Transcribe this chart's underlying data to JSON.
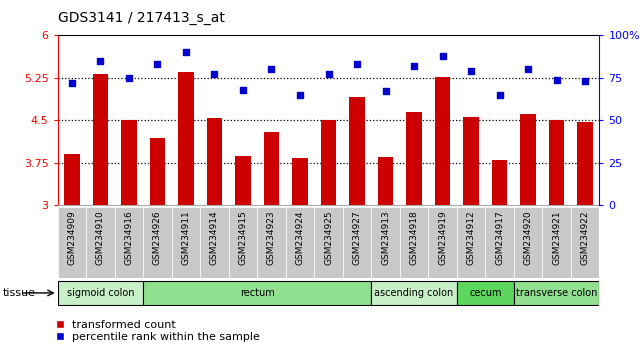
{
  "title": "GDS3141 / 217413_s_at",
  "samples": [
    "GSM234909",
    "GSM234910",
    "GSM234916",
    "GSM234926",
    "GSM234911",
    "GSM234914",
    "GSM234915",
    "GSM234923",
    "GSM234924",
    "GSM234925",
    "GSM234927",
    "GSM234913",
    "GSM234918",
    "GSM234919",
    "GSM234912",
    "GSM234917",
    "GSM234920",
    "GSM234921",
    "GSM234922"
  ],
  "bar_values": [
    3.9,
    5.32,
    4.5,
    4.19,
    5.35,
    4.55,
    3.87,
    4.3,
    3.83,
    4.5,
    4.92,
    3.85,
    4.65,
    5.27,
    4.56,
    3.8,
    4.62,
    4.5,
    4.47
  ],
  "dot_values": [
    72,
    85,
    75,
    83,
    90,
    77,
    68,
    80,
    65,
    77,
    83,
    67,
    82,
    88,
    79,
    65,
    80,
    74,
    73
  ],
  "bar_color": "#cc0000",
  "dot_color": "#0000cc",
  "ylim_left": [
    3,
    6
  ],
  "ylim_right": [
    0,
    100
  ],
  "yticks_left": [
    3,
    3.75,
    4.5,
    5.25,
    6
  ],
  "ytick_labels_left": [
    "3",
    "3.75",
    "4.5",
    "5.25",
    "6"
  ],
  "yticks_right": [
    0,
    25,
    50,
    75,
    100
  ],
  "ytick_labels_right": [
    "0",
    "25",
    "50",
    "75",
    "100%"
  ],
  "hlines": [
    3.75,
    4.5,
    5.25
  ],
  "tissue_groups": [
    {
      "label": "sigmoid colon",
      "start": 0,
      "end": 3,
      "color": "#c8f0c8"
    },
    {
      "label": "rectum",
      "start": 3,
      "end": 11,
      "color": "#90e090"
    },
    {
      "label": "ascending colon",
      "start": 11,
      "end": 14,
      "color": "#c8f0c8"
    },
    {
      "label": "cecum",
      "start": 14,
      "end": 16,
      "color": "#5cd65c"
    },
    {
      "label": "transverse colon",
      "start": 16,
      "end": 19,
      "color": "#90e090"
    }
  ],
  "sample_bg_color": "#c8c8c8",
  "tissue_label": "tissue",
  "legend_bar_label": "transformed count",
  "legend_dot_label": "percentile rank within the sample"
}
